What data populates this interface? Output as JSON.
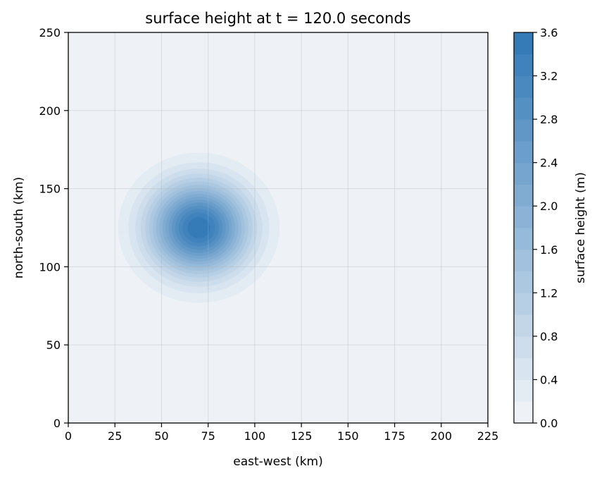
{
  "chart_data": {
    "type": "heatmap",
    "title": "surface height at t = 120.0 seconds",
    "xlabel": "east-west (km)",
    "ylabel": "north-south (km)",
    "xlim": [
      0,
      225
    ],
    "ylim": [
      0,
      250
    ],
    "xticks": [
      "0",
      "25",
      "50",
      "75",
      "100",
      "125",
      "150",
      "175",
      "200",
      "225"
    ],
    "yticks": [
      "0",
      "50",
      "100",
      "150",
      "200",
      "250"
    ],
    "grid": true,
    "field": {
      "shape": "gaussian",
      "center_x": 70,
      "center_y": 125,
      "peak": 3.6,
      "sigma_x": 18,
      "sigma_y": 20
    },
    "colorbar": {
      "label": "surface height (m)",
      "min": 0.0,
      "max": 3.6,
      "levels": [
        0.0,
        0.2,
        0.4,
        0.6,
        0.8,
        1.0,
        1.2,
        1.4,
        1.6,
        1.8,
        2.0,
        2.2,
        2.4,
        2.6,
        2.8,
        3.0,
        3.2,
        3.4,
        3.6
      ],
      "ticks": [
        "0.0",
        "0.4",
        "0.8",
        "1.2",
        "1.6",
        "2.0",
        "2.4",
        "2.8",
        "3.2",
        "3.6"
      ],
      "color_low": "#f3f5f8",
      "color_high": "#2f78b6"
    }
  }
}
